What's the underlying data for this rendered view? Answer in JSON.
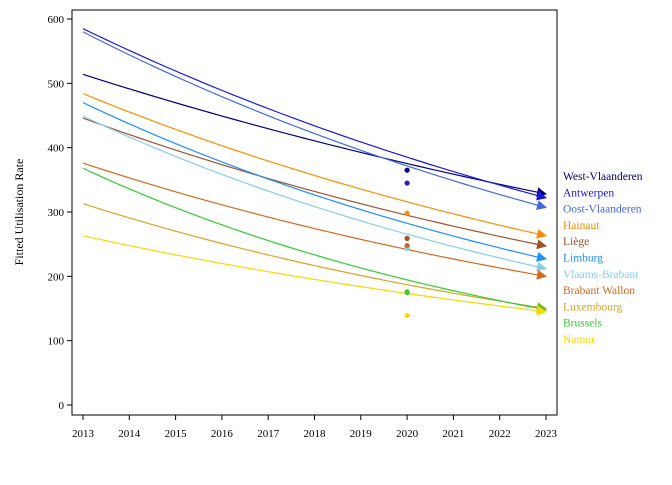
{
  "chart_data": {
    "type": "line",
    "title": "",
    "xlabel": "",
    "ylabel": "Fitted Utilisation Rate",
    "xlim": [
      2013,
      2023
    ],
    "ylim": [
      0,
      600
    ],
    "x_ticks": [
      "2013",
      "2014",
      "2015",
      "2016",
      "2017",
      "2018",
      "2019",
      "2020",
      "2021",
      "2022",
      "2023"
    ],
    "y_ticks": [
      "0",
      "100",
      "200",
      "300",
      "400",
      "500",
      "600"
    ],
    "grid": false,
    "legend": "right, labels at line ends",
    "x": [
      2013,
      2023
    ],
    "series": [
      {
        "name": "West-Vlaanderen",
        "color": "#000080",
        "start": 514,
        "end": 328,
        "observed": [
          {
            "x": 2020,
            "y": 365
          }
        ]
      },
      {
        "name": "Antwerpen",
        "color": "#1a1ad6",
        "start": 585,
        "end": 322,
        "observed": [
          {
            "x": 2020,
            "y": 345
          }
        ]
      },
      {
        "name": "Oost-Vlaanderen",
        "color": "#4169e1",
        "start": 580,
        "end": 307,
        "observed": []
      },
      {
        "name": "Hainaut",
        "color": "#ff8c00",
        "start": 484,
        "end": 263,
        "observed": [
          {
            "x": 2020,
            "y": 298
          }
        ]
      },
      {
        "name": "Liège",
        "color": "#a0522d",
        "start": 446,
        "end": 247,
        "observed": [
          {
            "x": 2020,
            "y": 259
          }
        ]
      },
      {
        "name": "Limburg",
        "color": "#1e90ff",
        "start": 470,
        "end": 227,
        "observed": [
          {
            "x": 2020,
            "y": 246
          }
        ]
      },
      {
        "name": "Vlaams-Brabant",
        "color": "#87ceeb",
        "start": 449,
        "end": 212,
        "observed": [
          {
            "x": 2020,
            "y": 243
          }
        ]
      },
      {
        "name": "Brabant Wallon",
        "color": "#d2691e",
        "start": 376,
        "end": 200,
        "observed": [
          {
            "x": 2020,
            "y": 248
          }
        ]
      },
      {
        "name": "Luxembourg",
        "color": "#daa520",
        "start": 313,
        "end": 150,
        "observed": [
          {
            "x": 2020,
            "y": 176
          }
        ]
      },
      {
        "name": "Brussels",
        "color": "#32cd32",
        "start": 368,
        "end": 148,
        "observed": [
          {
            "x": 2020,
            "y": 175
          }
        ]
      },
      {
        "name": "Namur",
        "color": "#ffd700",
        "start": 263,
        "end": 145,
        "observed": [
          {
            "x": 2020,
            "y": 139
          }
        ]
      }
    ]
  }
}
